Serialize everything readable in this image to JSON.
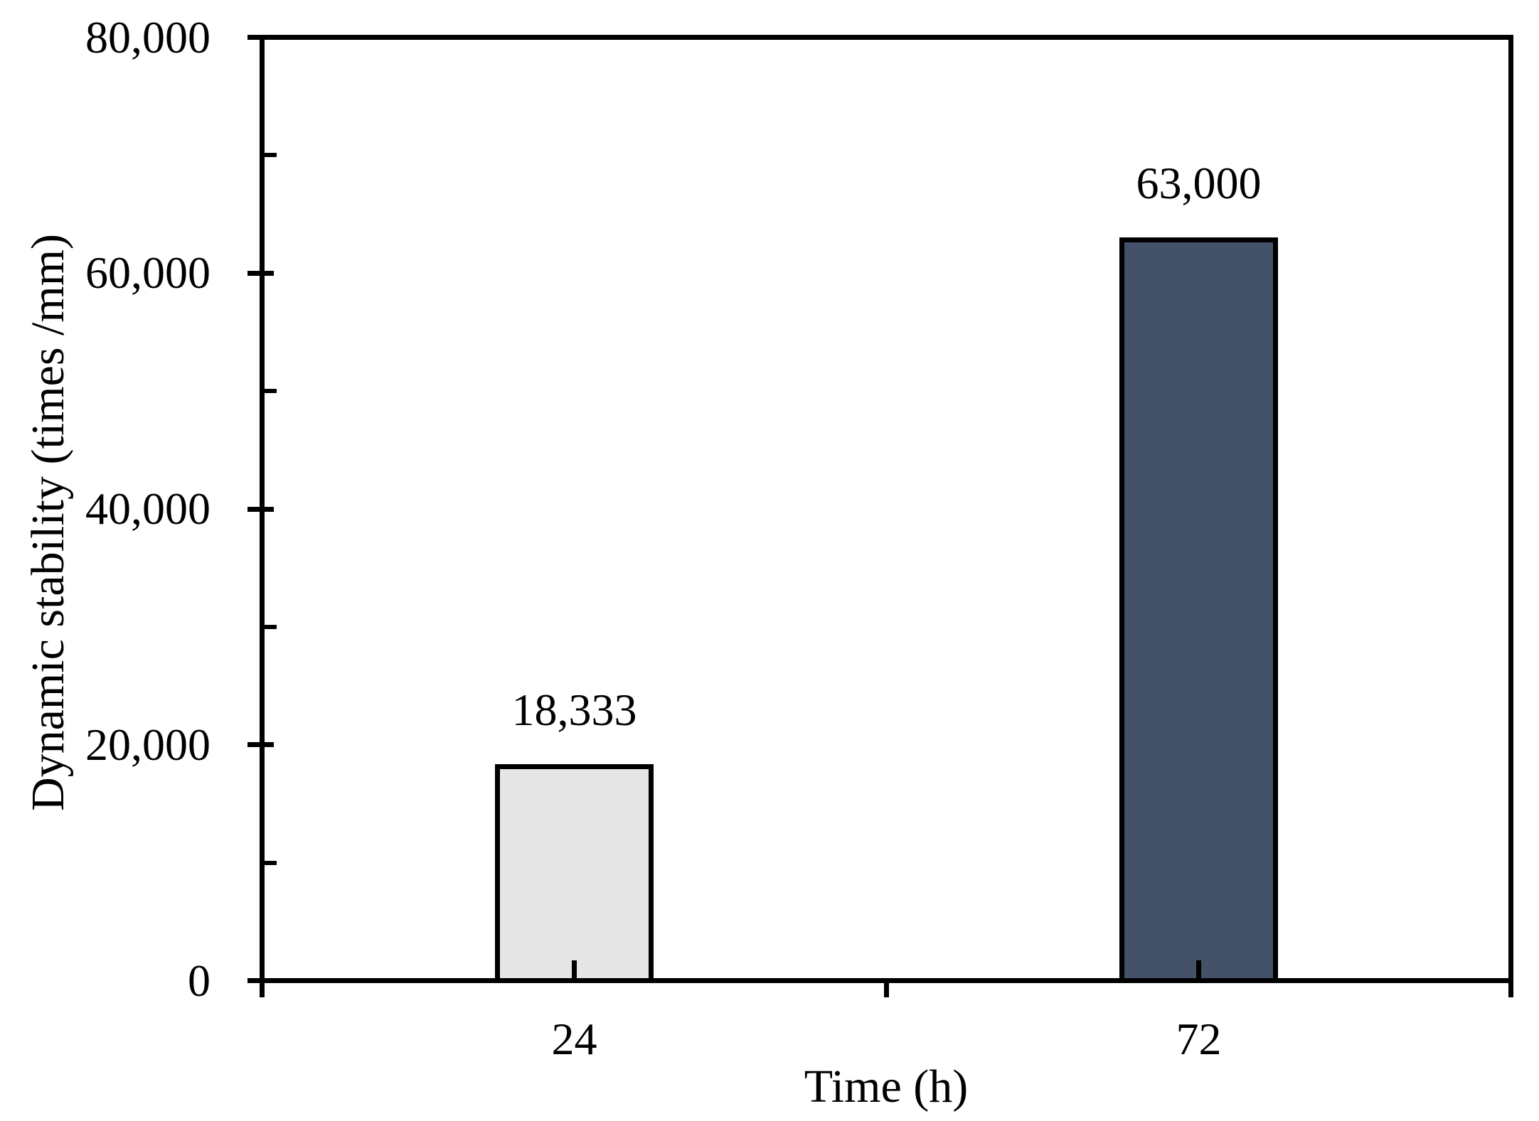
{
  "chart_data": {
    "type": "bar",
    "title": "",
    "categories": [
      "24",
      "72"
    ],
    "values": [
      18333,
      63000
    ],
    "value_labels": [
      "18,333",
      "63,000"
    ],
    "xlabel": "Time (h)",
    "ylabel": "Dynamic stability (times /mm)",
    "ylim": [
      0,
      80000
    ],
    "ytick_values": [
      0,
      20000,
      40000,
      60000,
      80000
    ],
    "ytick_labels": [
      "0",
      "20,000",
      "40,000",
      "60,000",
      "80,000"
    ],
    "yminor_values": [
      10000,
      30000,
      50000,
      70000
    ],
    "grid": false,
    "legend": false,
    "bar_fill_colors": [
      "#E6E6E6",
      "#445269"
    ],
    "bar_border_color": "#000000",
    "axis_color": "#000000",
    "background_color": "#FFFFFF"
  }
}
